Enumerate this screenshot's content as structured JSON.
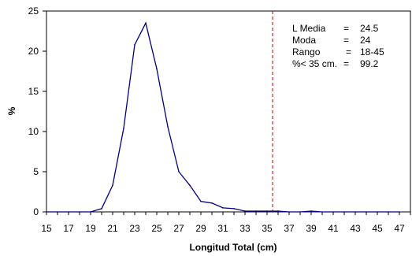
{
  "chart_data": {
    "type": "line",
    "title": "",
    "xlabel": "Longitud Total (cm)",
    "ylabel": "%",
    "xlim": [
      15,
      48
    ],
    "ylim": [
      0,
      25
    ],
    "x_ticks": [
      15,
      17,
      19,
      21,
      23,
      25,
      27,
      29,
      31,
      33,
      35,
      37,
      39,
      41,
      43,
      45,
      47
    ],
    "y_ticks": [
      0,
      5,
      10,
      15,
      20,
      25
    ],
    "grid": false,
    "series": [
      {
        "color": "#000080",
        "x": [
          15,
          16,
          17,
          18,
          19,
          20,
          21,
          22,
          23,
          24,
          25,
          26,
          27,
          28,
          29,
          30,
          31,
          32,
          33,
          34,
          35,
          36,
          37,
          38,
          39,
          40,
          41,
          42,
          43,
          44,
          45,
          46,
          47
        ],
        "y": [
          0,
          0,
          0,
          0,
          0,
          0.4,
          3.3,
          10.4,
          20.8,
          23.5,
          17.8,
          10.6,
          5.0,
          3.3,
          1.3,
          1.1,
          0.5,
          0.4,
          0.1,
          0.1,
          0.1,
          0.1,
          0,
          0,
          0.1,
          0,
          0,
          0,
          0,
          0,
          0,
          0,
          0
        ]
      }
    ],
    "reference_line": {
      "x": 35.5,
      "color": "#cc0000",
      "style": "dashed"
    },
    "annotations": [
      {
        "label": "L Media",
        "eq": "=",
        "value": "24.5"
      },
      {
        "label": "Moda",
        "eq": "=",
        "value": "24"
      },
      {
        "label": "Rango",
        "eq": "=",
        "value": "18-45"
      },
      {
        "label": "%< 35 cm.",
        "eq": "=",
        "value": "99.2"
      }
    ]
  }
}
